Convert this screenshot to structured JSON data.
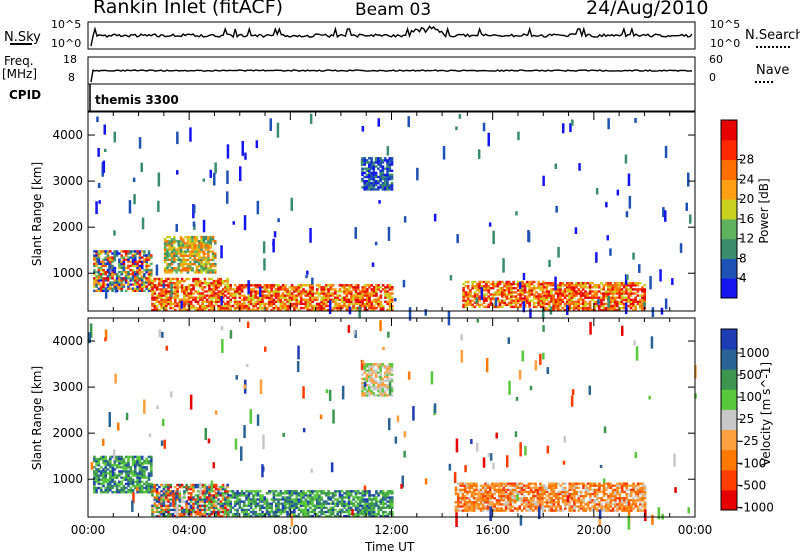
{
  "header": {
    "station": "Rankin Inlet (fitACF)",
    "beam": "Beam 03",
    "date": "24/Aug/2010"
  },
  "top_panels": {
    "nsky_label": "N.Sky",
    "nsearch_label": "N.Search",
    "nsky_ticks": [
      "10^5",
      "10^0"
    ],
    "nsearch_ticks": [
      "10^5",
      "10^0"
    ],
    "freq_label": "Freq.",
    "freq_unit": "[MHz]",
    "freq_ticks": [
      "18",
      "8"
    ],
    "nave_label": "Nave",
    "nave_ticks": [
      "60",
      "0"
    ],
    "cpid_label": "CPID",
    "cpid_value": "themis 3300"
  },
  "colors": {
    "power": [
      "#1515f0",
      "#1e52b4",
      "#3a8c6e",
      "#5fb35f",
      "#c8d21e",
      "#ffa014",
      "#ff6e00",
      "#ff2a00",
      "#e60000"
    ],
    "velocity": [
      "#e60000",
      "#ff3c00",
      "#ff7800",
      "#ffa040",
      "#c8c8c8",
      "#5ac83c",
      "#3c9650",
      "#2a6496",
      "#1e3cb4"
    ]
  },
  "chart_data": [
    {
      "type": "heatmap",
      "title": "Power",
      "ylabel": "Slant Range [km]",
      "xlabel": "Time UT",
      "x_ticks": [
        "00:00",
        "04:00",
        "08:00",
        "12:00",
        "16:00",
        "20:00",
        "00:00"
      ],
      "y_ticks": [
        "1000",
        "2000",
        "3000",
        "4000"
      ],
      "xlim": [
        0,
        24
      ],
      "ylim": [
        180,
        4500
      ],
      "colorbar": {
        "label": "Power [dB]",
        "ticks": [
          "4",
          "8",
          "12",
          "16",
          "20",
          "24",
          "28"
        ],
        "range": [
          0,
          30
        ]
      },
      "regions": [
        {
          "t": [
            0.2,
            2.5
          ],
          "r": [
            600,
            1500
          ],
          "level": "mixed"
        },
        {
          "t": [
            2.5,
            5.5
          ],
          "r": [
            180,
            900
          ],
          "level": "high"
        },
        {
          "t": [
            3.0,
            5.0
          ],
          "r": [
            1000,
            1800
          ],
          "level": "medium"
        },
        {
          "t": [
            5.5,
            12.0
          ],
          "r": [
            180,
            750
          ],
          "level": "high"
        },
        {
          "t": [
            10.8,
            12.0
          ],
          "r": [
            2800,
            3500
          ],
          "level": "low"
        },
        {
          "t": [
            14.8,
            18.0
          ],
          "r": [
            250,
            800
          ],
          "level": "high"
        },
        {
          "t": [
            18.0,
            22.0
          ],
          "r": [
            180,
            800
          ],
          "level": "high"
        }
      ]
    },
    {
      "type": "heatmap",
      "title": "Velocity",
      "ylabel": "Slant Range [km]",
      "xlabel": "Time UT",
      "x_ticks": [
        "00:00",
        "04:00",
        "08:00",
        "12:00",
        "16:00",
        "20:00",
        "00:00"
      ],
      "y_ticks": [
        "1000",
        "2000",
        "3000",
        "4000"
      ],
      "xlim": [
        0,
        24
      ],
      "ylim": [
        180,
        4500
      ],
      "colorbar": {
        "label": "Velocity [m s^-1]",
        "ticks": [
          "1000",
          "500",
          "100",
          "25",
          "-25",
          "-100",
          "-500",
          "-1000"
        ],
        "range": [
          -1500,
          1500
        ]
      },
      "regions": [
        {
          "t": [
            0.2,
            2.5
          ],
          "r": [
            700,
            1500
          ],
          "level": "positive"
        },
        {
          "t": [
            2.5,
            5.5
          ],
          "r": [
            180,
            900
          ],
          "level": "mixed"
        },
        {
          "t": [
            5.5,
            12.0
          ],
          "r": [
            180,
            750
          ],
          "level": "positive"
        },
        {
          "t": [
            10.8,
            12.0
          ],
          "r": [
            2800,
            3500
          ],
          "level": "near-zero"
        },
        {
          "t": [
            14.5,
            22.0
          ],
          "r": [
            300,
            900
          ],
          "level": "negative"
        }
      ]
    }
  ]
}
